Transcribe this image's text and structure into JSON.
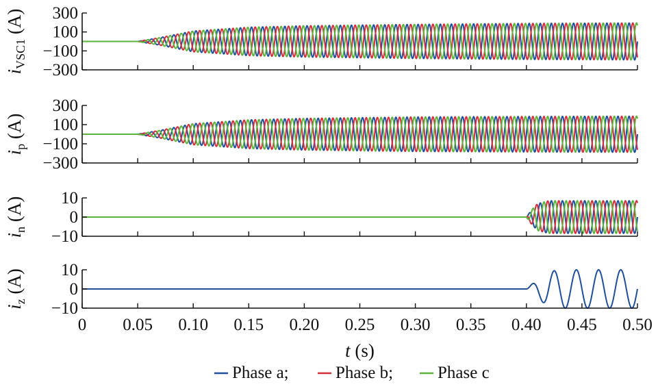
{
  "chart_data": [
    {
      "type": "line",
      "panel": "i_VSC1",
      "ylabel": {
        "symbol": "i",
        "subscript": "VSC1",
        "unit": "(A)"
      },
      "ylim": [
        -300,
        300
      ],
      "yticks": [
        -300,
        -100,
        100,
        300
      ],
      "xlim": [
        0,
        0.5
      ],
      "grid": false,
      "series": [
        {
          "name": "Phase a",
          "color": "#1f4e9c",
          "phase_deg": 0
        },
        {
          "name": "Phase b",
          "color": "#d62d3a",
          "phase_deg": -120
        },
        {
          "name": "Phase c",
          "color": "#5bb33b",
          "phase_deg": 120
        }
      ],
      "frequency_hz": 100,
      "amplitude_profile": [
        [
          0,
          0
        ],
        [
          0.05,
          0
        ],
        [
          0.07,
          40
        ],
        [
          0.1,
          110
        ],
        [
          0.15,
          150
        ],
        [
          0.2,
          165
        ],
        [
          0.3,
          180
        ],
        [
          0.4,
          190
        ],
        [
          0.5,
          195
        ]
      ]
    },
    {
      "type": "line",
      "panel": "i_p",
      "ylabel": {
        "symbol": "i",
        "subscript": "p",
        "unit": "(A)"
      },
      "ylim": [
        -300,
        300
      ],
      "yticks": [
        -300,
        -100,
        100,
        300
      ],
      "xlim": [
        0,
        0.5
      ],
      "grid": false,
      "series": [
        {
          "name": "Phase a",
          "color": "#1f4e9c",
          "phase_deg": 0
        },
        {
          "name": "Phase b",
          "color": "#d62d3a",
          "phase_deg": -120
        },
        {
          "name": "Phase c",
          "color": "#5bb33b",
          "phase_deg": 120
        }
      ],
      "frequency_hz": 100,
      "amplitude_profile": [
        [
          0,
          0
        ],
        [
          0.05,
          0
        ],
        [
          0.07,
          40
        ],
        [
          0.1,
          110
        ],
        [
          0.15,
          150
        ],
        [
          0.2,
          165
        ],
        [
          0.3,
          180
        ],
        [
          0.4,
          185
        ],
        [
          0.5,
          188
        ]
      ]
    },
    {
      "type": "line",
      "panel": "i_n",
      "ylabel": {
        "symbol": "i",
        "subscript": "n",
        "unit": "(A)"
      },
      "ylim": [
        -10,
        10
      ],
      "yticks": [
        -10,
        0,
        10
      ],
      "xlim": [
        0,
        0.5
      ],
      "grid": false,
      "series": [
        {
          "name": "Phase a",
          "color": "#1f4e9c",
          "phase_deg": 0
        },
        {
          "name": "Phase b",
          "color": "#d62d3a",
          "phase_deg": 120
        },
        {
          "name": "Phase c",
          "color": "#5bb33b",
          "phase_deg": -120
        }
      ],
      "frequency_hz": 100,
      "amplitude_profile": [
        [
          0,
          0
        ],
        [
          0.4,
          0
        ],
        [
          0.405,
          4
        ],
        [
          0.41,
          7
        ],
        [
          0.42,
          8.5
        ],
        [
          0.5,
          8.5
        ]
      ]
    },
    {
      "type": "line",
      "panel": "i_z",
      "ylabel": {
        "symbol": "i",
        "subscript": "z",
        "unit": "(A)"
      },
      "ylim": [
        -10,
        10
      ],
      "yticks": [
        -10,
        0,
        10
      ],
      "xlim": [
        0,
        0.5
      ],
      "xlabel": {
        "symbol": "t",
        "unit": "(s)"
      },
      "xticks": [
        "0",
        "0.05",
        "0.10",
        "0.15",
        "0.20",
        "0.25",
        "0.30",
        "0.35",
        "0.40",
        "0.45",
        "0.50"
      ],
      "grid": false,
      "series": [
        {
          "name": "Phase a",
          "color": "#1f4e9c",
          "phase_deg": 0
        }
      ],
      "frequency_hz": 50,
      "amplitude_profile": [
        [
          0,
          0
        ],
        [
          0.4,
          0
        ],
        [
          0.41,
          5
        ],
        [
          0.42,
          9
        ],
        [
          0.43,
          10
        ],
        [
          0.5,
          10
        ]
      ]
    }
  ],
  "legend": {
    "placement": "bottom-center",
    "entries": [
      {
        "label": "Phase a;",
        "color": "#1f4e9c"
      },
      {
        "label": "Phase b;",
        "color": "#d62d3a"
      },
      {
        "label": "Phase c",
        "color": "#5bb33b"
      }
    ]
  }
}
